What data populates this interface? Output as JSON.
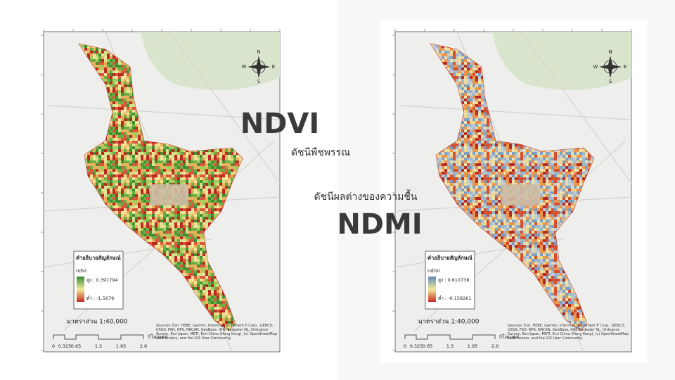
{
  "slide": {
    "ndvi_title": "NDVI",
    "ndvi_subtitle": "ดัชนีพืชพรรณ",
    "ndmi_subtitle": "ดัชนีผลต่างของความชื้น",
    "ndmi_title": "NDMI"
  },
  "maps": [
    {
      "legend_title": "คำอธิบายสัญลักษณ์",
      "layer": "ndvi",
      "high": "สูง : 0.391794",
      "low": "ต่ำ : -1.5679",
      "scale": "มาตราส่วน 1:40,000",
      "scale_ticks": [
        "0",
        "0.325",
        "0.65",
        "1.3",
        "1.95",
        "2.6"
      ],
      "unit": "กิโลเมตร",
      "compass": {
        "n": "N",
        "e": "E",
        "s": "S",
        "w": "W"
      },
      "sources": "Sources: Esri, HERE, Garmin, Intermap, increment P Corp., GEBCO, USGS, FAO, NPS, NRCAN, GeoBase, IGN, Kadaster NL, Ordnance Survey, Esri Japan, METI, Esri China (Hong Kong), (c) OpenStreetMap contributors, and the GIS User Community"
    },
    {
      "legend_title": "คำอธิบายสัญลักษณ์",
      "layer": "ndmi",
      "high": "สูง : 0.610738",
      "low": "ต่ำ : -0.158261",
      "scale": "มาตราส่วน 1:40,000",
      "scale_ticks": [
        "0",
        "0.325",
        "0.65",
        "1.3",
        "1.95",
        "2.6"
      ],
      "unit": "กิโลเมตร",
      "compass": {
        "n": "N",
        "e": "E",
        "s": "S",
        "w": "W"
      },
      "sources": "Sources: Esri, HERE, Garmin, Intermap, increment P Corp., GEBCO, USGS, FAO, NPS, NRCAN, GeoBase, IGN, Kadaster NL, Ordnance Survey, Esri Japan, METI, Esri China (Hong Kong), (c) OpenStreetMap contributors, and the GIS User Community"
    }
  ]
}
